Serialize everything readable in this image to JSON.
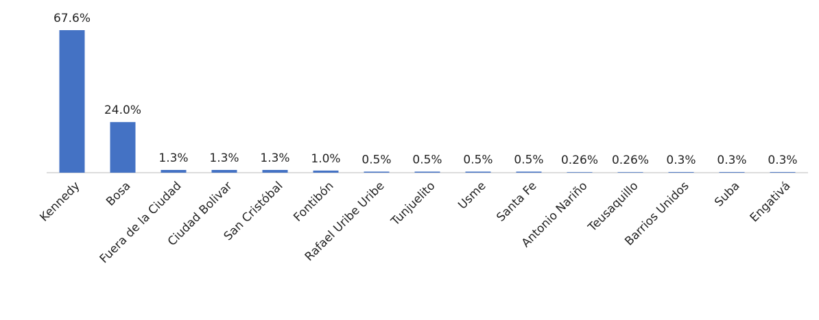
{
  "chart_data": {
    "type": "bar",
    "categories": [
      "Kennedy",
      "Bosa",
      "Fuera de la Ciudad",
      "Ciudad Bolivar",
      "San Cristóbal",
      "Fontibón",
      "Rafael Uribe Uribe",
      "Tunjuelito",
      "Usme",
      "Santa Fe",
      "Antonio Nariño",
      "Teusaquillo",
      "Barrios Unidos",
      "Suba",
      "Engativá"
    ],
    "values": [
      67.6,
      24.0,
      1.3,
      1.3,
      1.3,
      1.0,
      0.5,
      0.5,
      0.5,
      0.5,
      0.26,
      0.26,
      0.3,
      0.3,
      0.3
    ],
    "value_labels": [
      "67.6%",
      "24.0%",
      "1.3%",
      "1.3%",
      "1.3%",
      "1.0%",
      "0.5%",
      "0.5%",
      "0.5%",
      "0.5%",
      "0.26%",
      "0.26%",
      "0.3%",
      "0.3%",
      "0.3%"
    ],
    "color": "#4472c4"
  }
}
